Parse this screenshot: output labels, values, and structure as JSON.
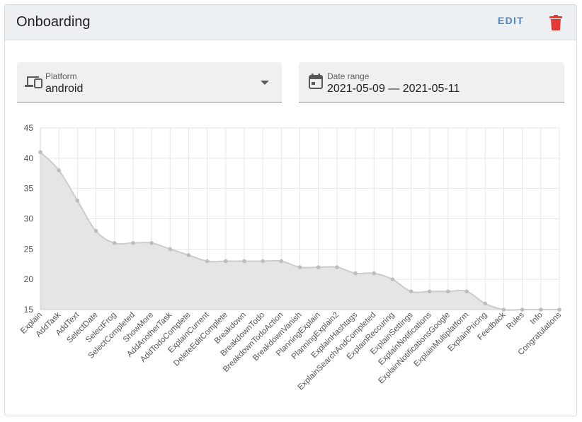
{
  "card": {
    "title": "Onboarding",
    "edit_label": "EDIT",
    "delete_icon": "trash-icon",
    "delete_color": "#e53935",
    "edit_color": "#4a86c5"
  },
  "filters": {
    "platform": {
      "label": "Platform",
      "value": "android",
      "icon": "devices-icon"
    },
    "date_range": {
      "label": "Date range",
      "value": "2021-05-09 — 2021-05-11",
      "icon": "calendar-icon"
    }
  },
  "chart_data": {
    "type": "area",
    "title": "",
    "xlabel": "",
    "ylabel": "",
    "ylim": [
      15,
      45
    ],
    "yticks": [
      15,
      20,
      25,
      30,
      35,
      40,
      45
    ],
    "grid": true,
    "fill_color": "#e5e5e5",
    "line_color": "#cccccc",
    "point_color": "#bdbdbd",
    "categories": [
      "Explain",
      "AddTask",
      "AddText",
      "SelectDate",
      "SelectFrog",
      "SelectCompleted",
      "ShowMore",
      "AddAnotherTask",
      "AddTodoComplete",
      "ExplainCurrent",
      "DeleteEditComplete",
      "Breakdown",
      "BreakdownTodo",
      "BreakdownTodoAction",
      "BreakdownVanish",
      "PlanningExplain",
      "PlanningExplain2",
      "ExplainHashtags",
      "ExplainSearchAndCompleted",
      "ExplainReccuring",
      "ExplainSettings",
      "ExplainNotifications",
      "ExplainNotificationsGoogle",
      "ExplainMultiplatform",
      "ExplainPricing",
      "Feedback",
      "Rules",
      "Info",
      "Congratulations"
    ],
    "values": [
      41,
      38,
      33,
      28,
      26,
      26,
      26,
      25,
      24,
      23,
      23,
      23,
      23,
      23,
      22,
      22,
      22,
      21,
      21,
      20,
      18,
      18,
      18,
      18,
      16,
      15,
      15,
      15,
      15
    ]
  }
}
